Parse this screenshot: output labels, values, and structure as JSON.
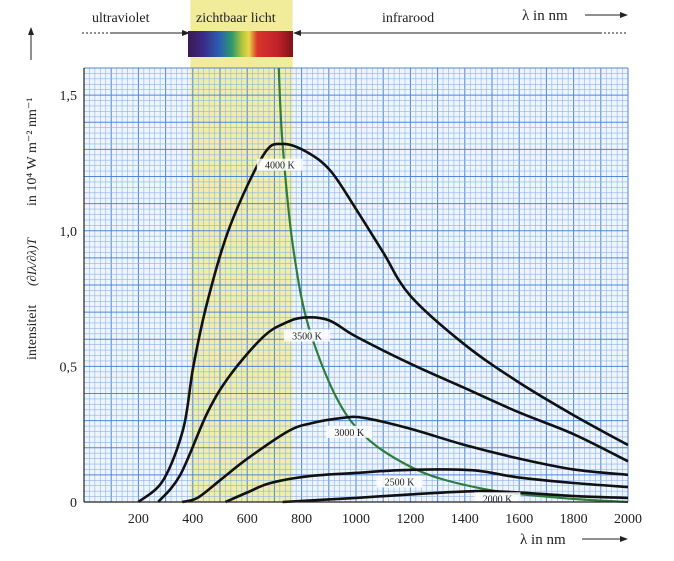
{
  "header": {
    "ultraviolet": "ultraviolet",
    "visible": "zichtbaar licht",
    "infrared": "infrarood",
    "top_axis_label": "λ in nm"
  },
  "chart_data": {
    "type": "line",
    "xlabel": "λ in nm",
    "ylabel_prefix": "intensiteit",
    "ylabel_unit": "in 10⁴ W m⁻² nm⁻¹",
    "ylabel_formula": "(∂Iλ/∂λ)T",
    "xlim": [
      0,
      2000
    ],
    "ylim": [
      0,
      1.6
    ],
    "x_ticks": [
      "200",
      "400",
      "600",
      "800",
      "1000",
      "1200",
      "1400",
      "1600",
      "1800",
      "2000"
    ],
    "y_ticks": [
      {
        "value": 0,
        "label": "0"
      },
      {
        "value": 0.5,
        "label": "0,5"
      },
      {
        "value": 1.0,
        "label": "1,0"
      },
      {
        "value": 1.5,
        "label": "1,5"
      }
    ],
    "grid": true,
    "visible_band_nm": [
      391,
      767
    ],
    "colors": {
      "grid": "#4f86d9",
      "grid_minor": "#8fb4ea",
      "background": "#eef5fd",
      "band": "#f1ec9a",
      "curve": "#111111",
      "peak_locus": "#2e7d3a"
    },
    "series": [
      {
        "name": "4000 K",
        "x": [
          200,
          291,
          365,
          402,
          454,
          538,
          660,
          730,
          820,
          907,
          1000,
          1100,
          1200,
          1400,
          1600,
          1800,
          2000
        ],
        "y": [
          0,
          0.08,
          0.27,
          0.5,
          0.74,
          1.02,
          1.28,
          1.32,
          1.29,
          1.22,
          1.08,
          0.92,
          0.76,
          0.58,
          0.44,
          0.32,
          0.21
        ]
      },
      {
        "name": "3500 K",
        "x": [
          273,
          354,
          454,
          539,
          660,
          740,
          808,
          900,
          1000,
          1200,
          1400,
          1600,
          1800,
          2000
        ],
        "y": [
          0,
          0.1,
          0.33,
          0.47,
          0.61,
          0.66,
          0.68,
          0.67,
          0.61,
          0.51,
          0.42,
          0.33,
          0.25,
          0.15
        ]
      },
      {
        "name": "3000 K",
        "x": [
          361,
          417,
          500,
          601,
          749,
          834,
          950,
          1030,
          1200,
          1400,
          1600,
          1800,
          2000
        ],
        "y": [
          0,
          0.015,
          0.08,
          0.16,
          0.26,
          0.29,
          0.31,
          0.31,
          0.27,
          0.21,
          0.16,
          0.12,
          0.1
        ]
      },
      {
        "name": "2500 K",
        "x": [
          520,
          600,
          686,
          834,
          1000,
          1150,
          1313,
          1450,
          1600,
          1800,
          2000
        ],
        "y": [
          0,
          0.035,
          0.07,
          0.096,
          0.107,
          0.117,
          0.12,
          0.115,
          0.09,
          0.07,
          0.055
        ]
      },
      {
        "name": "2000 K",
        "x": [
          730,
          1000,
          1200,
          1435,
          1600,
          1800,
          2000
        ],
        "y": [
          0,
          0.015,
          0.028,
          0.04,
          0.035,
          0.022,
          0.015
        ]
      }
    ],
    "peak_locus": {
      "x": [
        716,
        730,
        770,
        837,
        980,
        1200,
        1460,
        1755,
        2000
      ],
      "y": [
        1.6,
        1.32,
        0.93,
        0.61,
        0.3,
        0.13,
        0.05,
        0.015,
        0.0
      ]
    }
  }
}
